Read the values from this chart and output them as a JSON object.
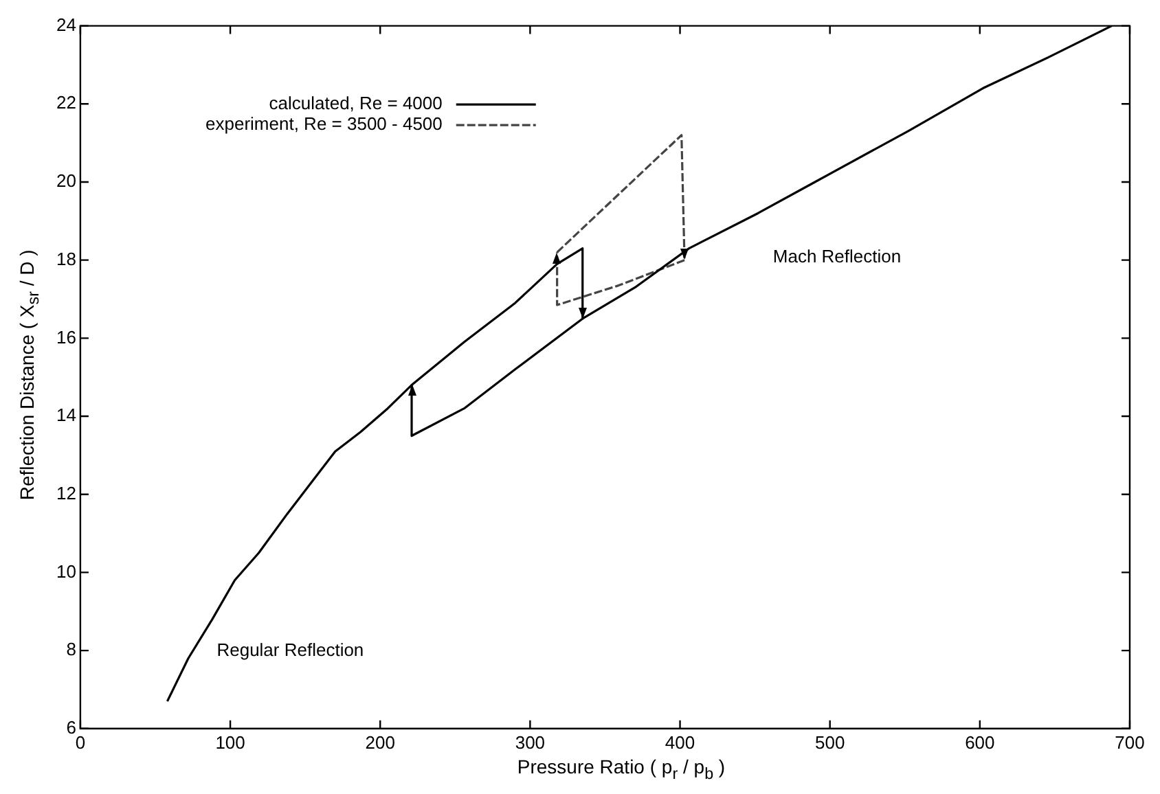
{
  "chart_data": {
    "type": "line",
    "xlabel": "Pressure Ratio ( p$_{r}$ / p$_{b}$ )",
    "ylabel": "Reflection Distance ( X$_{sr}$ / D )",
    "xlim": [
      0,
      700
    ],
    "ylim": [
      6,
      24
    ],
    "xticks": [
      0,
      100,
      200,
      300,
      400,
      500,
      600,
      700
    ],
    "yticks": [
      6,
      8,
      10,
      12,
      14,
      16,
      18,
      20,
      22,
      24
    ],
    "legend": "top left",
    "annotations": [
      "Regular Reflection",
      "Mach Reflection"
    ],
    "series": [
      {
        "name": "calculated, Re = 4000",
        "color": "#000000",
        "line_style": "solid",
        "x": [
          58,
          72,
          88,
          103,
          119,
          138,
          156,
          170,
          187,
          205,
          221,
          256,
          290,
          318,
          335,
          335,
          370,
          406,
          452,
          490,
          552,
          602,
          646,
          667,
          688
        ],
        "values": [
          6.7,
          7.8,
          8.8,
          9.8,
          10.5,
          11.5,
          12.4,
          13.1,
          13.6,
          14.2,
          14.8,
          15.9,
          16.9,
          17.9,
          18.3,
          16.5,
          17.3,
          18.3,
          19.2,
          20.0,
          21.3,
          22.4,
          23.2,
          23.6,
          24.0
        ]
      },
      {
        "color": "#000000",
        "line_style": "solid",
        "x": [
          335,
          290,
          256,
          221,
          221
        ],
        "values": [
          16.5,
          15.2,
          14.2,
          13.5,
          14.8
        ]
      },
      {
        "name": "experiment, Re = 3500 - 4500",
        "color": "#444444",
        "line_style": "dashed",
        "x": [
          403,
          359,
          318,
          318
        ],
        "values": [
          18.0,
          17.35,
          16.85,
          18.2
        ]
      },
      {
        "color": "#444444",
        "line_style": "dashed",
        "x": [
          318,
          401,
          403
        ],
        "values": [
          18.2,
          21.2,
          18.0
        ]
      }
    ]
  }
}
